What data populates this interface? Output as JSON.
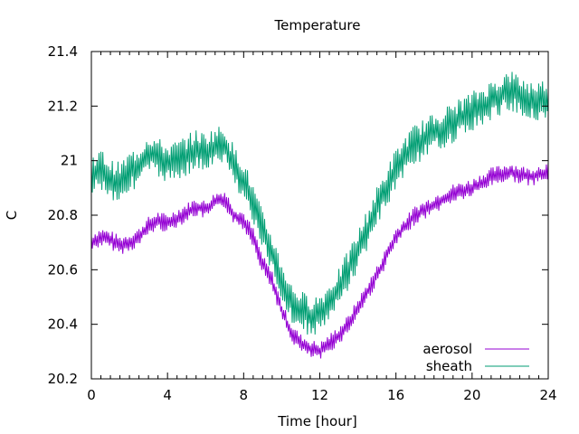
{
  "chart_data": {
    "type": "line",
    "title": "Temperature",
    "xlabel": "Time [hour]",
    "ylabel": "C",
    "xlim": [
      0,
      24
    ],
    "ylim": [
      20.2,
      21.4
    ],
    "xticks": [
      0,
      4,
      8,
      12,
      16,
      20,
      24
    ],
    "xtick_labels": [
      "0",
      "4",
      "8",
      "12",
      "16",
      "20",
      "24"
    ],
    "yticks": [
      20.2,
      20.4,
      20.6,
      20.8,
      21.0,
      21.2,
      21.4
    ],
    "ytick_labels": [
      "20.2",
      "20.4",
      "20.6",
      "20.8",
      "21",
      "21.2",
      "21.4"
    ],
    "grid": false,
    "legend_position": "bottom-right",
    "series": [
      {
        "name": "aerosol",
        "color": "#9400d3",
        "x": [
          0,
          0.5,
          1,
          1.5,
          2,
          2.5,
          3,
          3.5,
          4,
          4.5,
          5,
          5.5,
          6,
          6.5,
          7,
          7.5,
          8,
          8.5,
          9,
          9.5,
          10,
          10.5,
          11,
          11.5,
          12,
          12.5,
          13,
          13.5,
          14,
          14.5,
          15,
          15.5,
          16,
          16.5,
          17,
          17.5,
          18,
          18.5,
          19,
          19.5,
          20,
          20.5,
          21,
          21.5,
          22,
          22.5,
          23,
          23.5,
          24
        ],
        "y": [
          20.7,
          20.72,
          20.71,
          20.69,
          20.7,
          20.72,
          20.76,
          20.78,
          20.77,
          20.79,
          20.81,
          20.83,
          20.82,
          20.85,
          20.86,
          20.8,
          20.78,
          20.72,
          20.62,
          20.56,
          20.45,
          20.37,
          20.33,
          20.31,
          20.3,
          20.33,
          20.36,
          20.4,
          20.46,
          20.52,
          20.58,
          20.65,
          20.72,
          20.76,
          20.8,
          20.82,
          20.84,
          20.86,
          20.88,
          20.89,
          20.9,
          20.92,
          20.94,
          20.95,
          20.96,
          20.95,
          20.94,
          20.95,
          20.96
        ]
      },
      {
        "name": "sheath",
        "color": "#009e73",
        "x": [
          0,
          0.5,
          1,
          1.5,
          2,
          2.5,
          3,
          3.5,
          4,
          4.5,
          5,
          5.5,
          6,
          6.5,
          7,
          7.5,
          8,
          8.5,
          9,
          9.5,
          10,
          10.5,
          11,
          11.5,
          12,
          12.5,
          13,
          13.5,
          14,
          14.5,
          15,
          15.5,
          16,
          16.5,
          17,
          17.5,
          18,
          18.5,
          19,
          19.5,
          20,
          20.5,
          21,
          21.5,
          22,
          22.5,
          23,
          23.5,
          24
        ],
        "y": [
          20.95,
          20.97,
          20.93,
          20.92,
          20.96,
          20.98,
          21.03,
          21.01,
          20.99,
          21.0,
          21.02,
          21.04,
          21.03,
          21.05,
          21.06,
          20.98,
          20.93,
          20.84,
          20.74,
          20.66,
          20.56,
          20.48,
          20.45,
          20.43,
          20.44,
          20.48,
          20.53,
          20.6,
          20.67,
          20.75,
          20.83,
          20.9,
          20.97,
          21.02,
          21.06,
          21.08,
          21.1,
          21.12,
          21.14,
          21.16,
          21.18,
          21.2,
          21.22,
          21.24,
          21.26,
          21.24,
          21.22,
          21.22,
          21.23
        ]
      }
    ]
  }
}
